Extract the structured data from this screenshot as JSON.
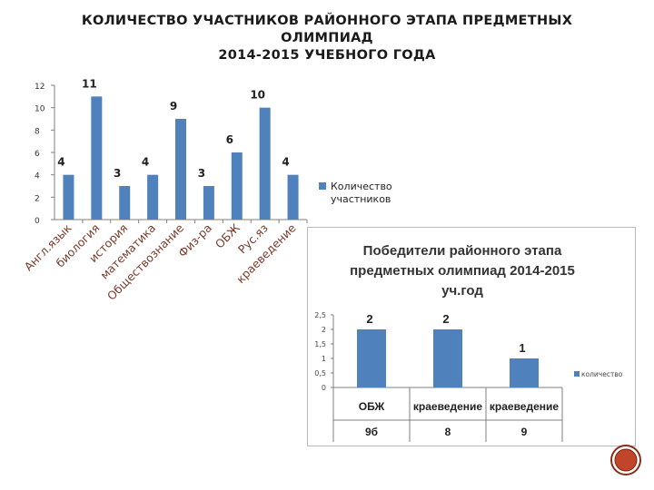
{
  "title_lines": [
    "КОЛИЧЕСТВО УЧАСТНИКОВ РАЙОННОГО ЭТАПА  ПРЕДМЕТНЫХ",
    "ОЛИМПИАД",
    "2014-2015 УЧЕБНОГО ГОДА"
  ],
  "chart_data": [
    {
      "type": "bar",
      "title": "",
      "categories": [
        "Англ.язык",
        "биология",
        "история",
        "математика",
        "Обществознание",
        "Физ-ра",
        "ОБЖ",
        "Рус.яз",
        "краеведение"
      ],
      "series": [
        {
          "name": "Количество участников",
          "values": [
            4,
            11,
            3,
            4,
            9,
            3,
            6,
            10,
            4
          ]
        }
      ],
      "data_labels": [
        "4",
        "11",
        "3",
        "4",
        "9",
        "3",
        "6",
        "10",
        "4"
      ],
      "yticks": [
        "0",
        "2",
        "4",
        "6",
        "8",
        "10",
        "12"
      ],
      "ylim": [
        0,
        12
      ],
      "grid": false,
      "legend": "right",
      "legend_lines": [
        "Количество",
        "участников"
      ],
      "color": "#4f81bd"
    },
    {
      "type": "bar",
      "title_lines": [
        "Победители районного этапа",
        "предметных олимпиад 2014-2015",
        "уч.год"
      ],
      "categories": [
        "ОБЖ",
        "краеведение",
        "краеведение"
      ],
      "sub_labels": [
        "9б",
        "8",
        "9"
      ],
      "series": [
        {
          "name": "количество",
          "values": [
            2,
            2,
            1
          ]
        }
      ],
      "data_labels": [
        "2",
        "2",
        "1"
      ],
      "yticks": [
        "0",
        "0,5",
        "1",
        "1,5",
        "2",
        "2,5"
      ],
      "ylim": [
        0,
        2.5
      ],
      "grid": false,
      "legend": "right",
      "color": "#4f81bd"
    }
  ],
  "logo": {
    "name": "emblem",
    "colors": {
      "outer": "#8b2d18",
      "inner": "#c0452a"
    }
  }
}
